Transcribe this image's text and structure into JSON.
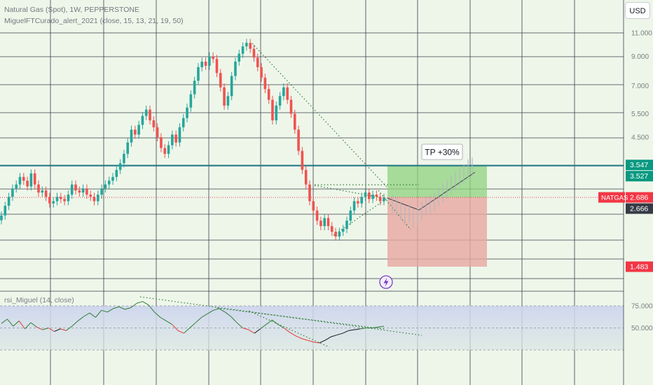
{
  "header": {
    "symbol_line": "Natural Gas (Spot), 1W, PEPPERSTONE",
    "indicator_line": "MiguelFTCurado_alert_2021 (close, 15, 13, 21, 19, 50)",
    "currency_button": "USD"
  },
  "chart_data": [
    {
      "type": "candlestick",
      "symbol": "NATGAS",
      "interval": "1W",
      "scale": "log",
      "y_ticks": [
        {
          "label": "11.000",
          "value": 11.0
        },
        {
          "label": "9.000",
          "value": 9.0
        },
        {
          "label": "7.000",
          "value": 7.0
        },
        {
          "label": "5.500",
          "value": 5.5
        },
        {
          "label": "4.500",
          "value": 4.5
        }
      ],
      "price_tags": [
        {
          "label": "3.547",
          "value": 3.547,
          "color": "#089981"
        },
        {
          "label": "3.527",
          "value": 3.527,
          "color": "#089981"
        },
        {
          "label": "NATGAS",
          "value": 2.686,
          "color": "#f23645",
          "is_symbol": true
        },
        {
          "label": "2.686",
          "value": 2.686,
          "color": "#f23645"
        },
        {
          "label": "2.666",
          "value": 2.666,
          "color": "#363a45"
        },
        {
          "label": "1.483",
          "value": 1.483,
          "color": "#f23645"
        }
      ],
      "horizontal_level": 3.527,
      "position": {
        "label": "TP +30%",
        "entry": 2.686,
        "target": 3.527,
        "stop": 1.483
      },
      "close_series": [
        2.3,
        2.5,
        2.7,
        2.9,
        3.0,
        3.2,
        3.1,
        2.95,
        3.3,
        3.0,
        2.8,
        2.85,
        2.7,
        2.55,
        2.6,
        2.7,
        2.65,
        2.6,
        2.75,
        3.0,
        2.85,
        2.8,
        2.9,
        2.75,
        2.7,
        2.6,
        2.75,
        2.9,
        3.0,
        3.1,
        3.2,
        3.4,
        3.6,
        3.9,
        4.3,
        4.8,
        4.6,
        5.0,
        5.4,
        5.7,
        5.2,
        4.9,
        4.5,
        4.1,
        3.9,
        4.2,
        4.6,
        4.3,
        4.9,
        5.3,
        5.8,
        6.5,
        7.3,
        8.2,
        8.6,
        8.3,
        9.0,
        8.8,
        7.8,
        6.9,
        5.9,
        6.4,
        7.6,
        8.6,
        9.2,
        9.8,
        10.1,
        9.6,
        8.9,
        8.2,
        7.5,
        6.8,
        6.2,
        5.2,
        5.9,
        6.4,
        6.9,
        6.2,
        5.5,
        4.8,
        4.0,
        3.4,
        3.0,
        2.6,
        2.4,
        2.2,
        2.1,
        2.25,
        2.1,
        2.0,
        1.92,
        2.0,
        2.05,
        2.2,
        2.4,
        2.6,
        2.55,
        2.7,
        2.8,
        2.65,
        2.75,
        2.7,
        2.6,
        2.68
      ]
    },
    {
      "type": "line",
      "name": "rsi_Miguel (14, close)",
      "y_ticks": [
        {
          "label": "75.000",
          "value": 75
        },
        {
          "label": "50.000",
          "value": 50
        }
      ],
      "overbought": 75,
      "oversold": 25,
      "values": [
        55,
        60,
        52,
        58,
        49,
        56,
        51,
        48,
        50,
        46,
        49,
        47,
        52,
        58,
        63,
        67,
        62,
        70,
        68,
        72,
        74,
        71,
        73,
        78,
        80,
        76,
        68,
        62,
        58,
        54,
        47,
        44,
        50,
        56,
        62,
        66,
        70,
        72,
        68,
        63,
        56,
        50,
        48,
        44,
        49,
        54,
        59,
        54,
        50,
        45,
        41,
        38,
        36,
        34,
        33,
        36,
        40,
        42,
        44,
        47,
        48,
        49,
        50,
        50,
        51,
        52
      ]
    }
  ]
}
